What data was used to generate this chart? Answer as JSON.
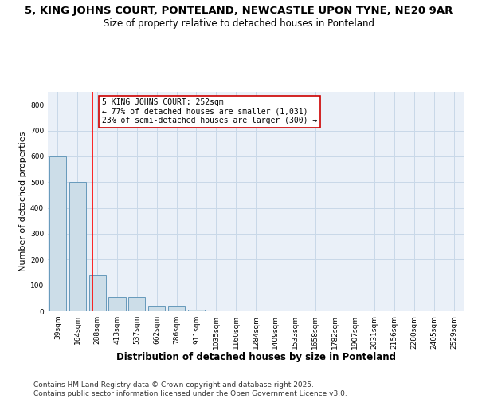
{
  "title_line1": "5, KING JOHNS COURT, PONTELAND, NEWCASTLE UPON TYNE, NE20 9AR",
  "title_line2": "Size of property relative to detached houses in Ponteland",
  "xlabel": "Distribution of detached houses by size in Ponteland",
  "ylabel": "Number of detached properties",
  "bar_values": [
    600,
    500,
    140,
    55,
    55,
    20,
    20,
    5,
    0,
    0,
    0,
    0,
    0,
    0,
    0,
    0,
    0,
    0,
    0,
    0,
    0
  ],
  "bin_labels": [
    "39sqm",
    "164sqm",
    "288sqm",
    "413sqm",
    "537sqm",
    "662sqm",
    "786sqm",
    "911sqm",
    "1035sqm",
    "1160sqm",
    "1284sqm",
    "1409sqm",
    "1533sqm",
    "1658sqm",
    "1782sqm",
    "1907sqm",
    "2031sqm",
    "2156sqm",
    "2280sqm",
    "2405sqm",
    "2529sqm"
  ],
  "bar_color": "#ccdde8",
  "bar_edge_color": "#6699bb",
  "red_line_x": 1.77,
  "annotation_text": "5 KING JOHNS COURT: 252sqm\n← 77% of detached houses are smaller (1,031)\n23% of semi-detached houses are larger (300) →",
  "annotation_box_color": "#ffffff",
  "annotation_box_edge_color": "#cc0000",
  "ylim": [
    0,
    850
  ],
  "yticks": [
    0,
    100,
    200,
    300,
    400,
    500,
    600,
    700,
    800
  ],
  "grid_color": "#c8d8e8",
  "background_color": "#eaf0f8",
  "footer_line1": "Contains HM Land Registry data © Crown copyright and database right 2025.",
  "footer_line2": "Contains public sector information licensed under the Open Government Licence v3.0.",
  "title_fontsize": 9.5,
  "subtitle_fontsize": 8.5,
  "axis_label_fontsize": 8,
  "tick_fontsize": 6.5,
  "annotation_fontsize": 7,
  "footer_fontsize": 6.5
}
